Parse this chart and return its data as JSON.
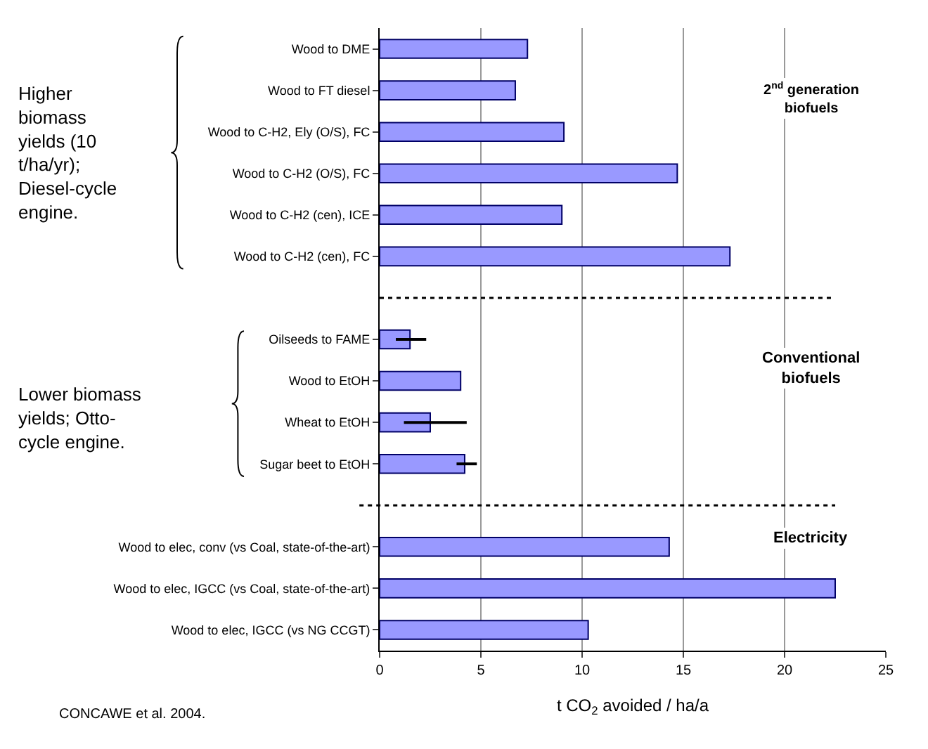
{
  "chart_data": {
    "type": "bar",
    "orientation": "horizontal",
    "xlabel": "t CO$_{2}$ avoided / ha/a",
    "categories": [
      "Wood to DME",
      "Wood to FT diesel",
      "Wood to C-H2, Ely (O/S), FC",
      "Wood to C-H2 (O/S), FC",
      "Wood to C-H2 (cen), ICE",
      "Wood to C-H2 (cen), FC",
      null,
      "Oilseeds to FAME",
      "Wood to EtOH",
      "Wheat to EtOH",
      "Sugar beet to EtOH",
      null,
      "Wood to elec, conv (vs Coal, state-of-the-art)",
      "Wood to elec, IGCC (vs Coal, state-of-the-art)",
      "Wood to elec, IGCC (vs NG CCGT)"
    ],
    "values": [
      7.3,
      6.7,
      9.1,
      14.7,
      9.0,
      17.3,
      null,
      1.5,
      4.0,
      2.5,
      4.2,
      null,
      14.3,
      22.5,
      10.3
    ],
    "errors": [
      null,
      null,
      null,
      null,
      null,
      null,
      null,
      [
        0.8,
        2.3
      ],
      null,
      [
        1.2,
        4.3
      ],
      [
        3.8,
        4.8
      ],
      null,
      null,
      null,
      null
    ],
    "color": "#9999ff",
    "xlim": [
      0,
      25
    ],
    "xticks": [
      0,
      5,
      10,
      15,
      20,
      25
    ],
    "grid": "x",
    "ref_lines": [
      {
        "axis": "y",
        "value": null,
        "line_style": "dashed",
        "color": "#000000"
      },
      {
        "axis": "y",
        "value": null,
        "line_style": "dashed",
        "color": "#000000"
      }
    ],
    "annotations": [
      "2$^{nd}$ generation\nbiofuels",
      "Conventional\nbiofuels",
      "Electricity",
      "Higher\nbiomass\nyields (10\nt/ha/yr);\nDiesel-cycle\nengine.",
      "Lower biomass\nyields; Otto-\ncycle engine.",
      "CONCAWE et al. 2004."
    ]
  }
}
